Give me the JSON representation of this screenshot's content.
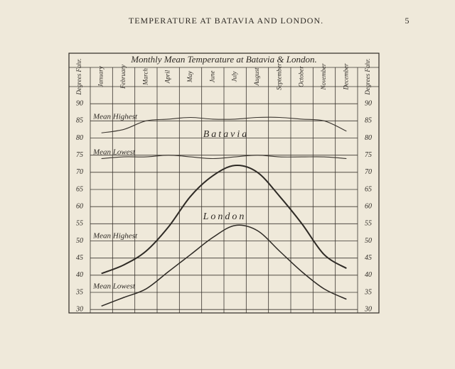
{
  "header": {
    "title": "TEMPERATURE AT BATAVIA AND LONDON.",
    "page_number": "5"
  },
  "chart_data": {
    "type": "line",
    "title": "Monthly Mean Temperature at Batavia & London.",
    "ylabel": "Degrees Fahr.",
    "categories": [
      "January",
      "February",
      "March",
      "April",
      "May",
      "June",
      "July",
      "August",
      "September",
      "October",
      "November",
      "December"
    ],
    "series": [
      {
        "name": "Mean Highest",
        "color": "#3a352f",
        "values": [
          81.5,
          82.5,
          85,
          85.5,
          86,
          85.5,
          85.5,
          86,
          86,
          85.5,
          85,
          82
        ]
      },
      {
        "name": "Mean Lowest",
        "color": "#3a352f",
        "values": [
          74,
          74.5,
          74.5,
          75,
          74.5,
          74,
          74.5,
          75,
          74.5,
          74.5,
          74.5,
          74
        ]
      },
      {
        "name": "Mean Highest",
        "color": "#2e2a25",
        "values": [
          40.5,
          43,
          47,
          54,
          63,
          69,
          72,
          70,
          63,
          55,
          46,
          42
        ]
      },
      {
        "name": "Mean Lowest",
        "color": "#2e2a25",
        "values": [
          31,
          33.5,
          36,
          41,
          46,
          51,
          54.5,
          53,
          47,
          41,
          36,
          33
        ]
      }
    ],
    "annotations": [
      "Batavia",
      "London"
    ],
    "ylim": [
      29,
      95
    ],
    "yticks": [
      30,
      35,
      40,
      45,
      50,
      55,
      60,
      65,
      70,
      75,
      80,
      85,
      90
    ],
    "grid": true
  }
}
